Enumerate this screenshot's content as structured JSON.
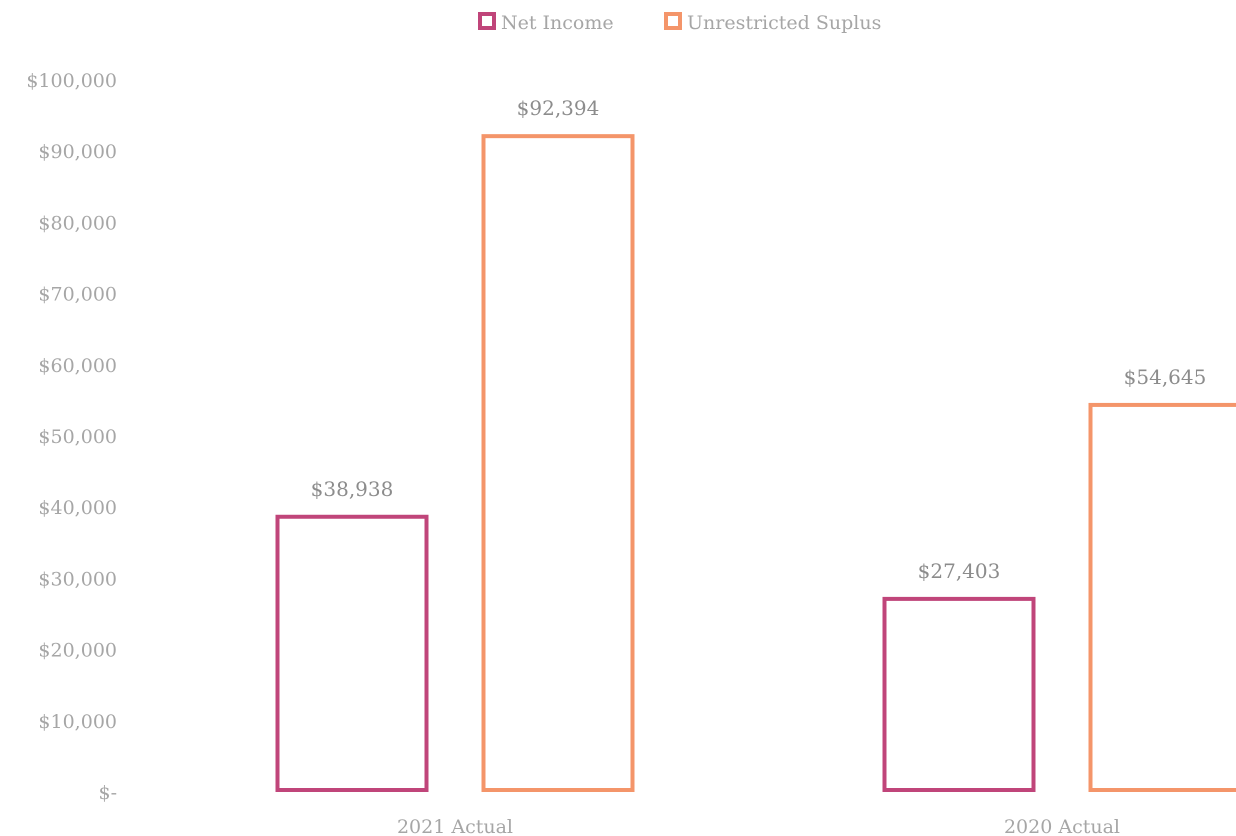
{
  "chart_data": {
    "type": "bar",
    "title": "",
    "xlabel": "",
    "ylabel": "",
    "categories": [
      "2021 Actual",
      "2020 Actual"
    ],
    "series": [
      {
        "name": "Net Income",
        "values": [
          38938,
          27403
        ],
        "labels": [
          "$38,938",
          "$27,403"
        ],
        "color": "#c0457a"
      },
      {
        "name": "Unrestricted Suplus",
        "values": [
          92394,
          54645
        ],
        "labels": [
          "$92,394",
          "$54,645"
        ],
        "color": "#f4956a"
      }
    ],
    "ylim": [
      0,
      100000
    ],
    "y_ticks": [
      {
        "value": 0,
        "label": "$-"
      },
      {
        "value": 10000,
        "label": "$10,000"
      },
      {
        "value": 20000,
        "label": "$20,000"
      },
      {
        "value": 30000,
        "label": "$30,000"
      },
      {
        "value": 40000,
        "label": "$40,000"
      },
      {
        "value": 50000,
        "label": "$50,000"
      },
      {
        "value": 60000,
        "label": "$60,000"
      },
      {
        "value": 70000,
        "label": "$70,000"
      },
      {
        "value": 80000,
        "label": "$80,000"
      },
      {
        "value": 90000,
        "label": "$90,000"
      },
      {
        "value": 100000,
        "label": "$100,000"
      }
    ],
    "bar_style": "outline",
    "grid": false,
    "legend_position": "top"
  }
}
